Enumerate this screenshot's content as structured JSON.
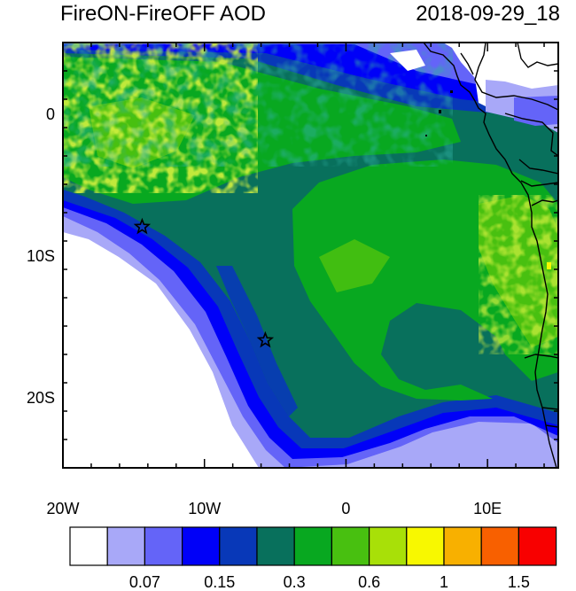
{
  "title_left": "FireON-FireOFF AOD",
  "title_right": "2018-09-29_18",
  "lon_ticks": [
    {
      "value": -20,
      "label": "20W"
    },
    {
      "value": -10,
      "label": "10W"
    },
    {
      "value": 0,
      "label": "0"
    },
    {
      "value": 10,
      "label": "10E"
    }
  ],
  "lat_ticks": [
    {
      "value": 0,
      "label": "0"
    },
    {
      "value": -10,
      "label": "10S"
    },
    {
      "value": -20,
      "label": "20S"
    }
  ],
  "lon_range": [
    -20,
    15
  ],
  "lat_range": [
    -25,
    5
  ],
  "stars": [
    {
      "lon": -14.4,
      "lat": -8.0
    },
    {
      "lon": -5.7,
      "lat": -16.0
    }
  ],
  "colorbar": {
    "colors": [
      "#ffffff",
      "#a8a8f8",
      "#6464f8",
      "#0000f8",
      "#0838b8",
      "#08705c",
      "#08a820",
      "#48c010",
      "#a8e008",
      "#f8f800",
      "#f8b000",
      "#f86000",
      "#f80000"
    ],
    "labels": [
      {
        "after_box": 2,
        "text": "0.07"
      },
      {
        "after_box": 4,
        "text": "0.15"
      },
      {
        "after_box": 6,
        "text": "0.3"
      },
      {
        "after_box": 8,
        "text": "0.6"
      },
      {
        "after_box": 10,
        "text": "1"
      },
      {
        "after_box": 12,
        "text": "1.5"
      }
    ]
  }
}
